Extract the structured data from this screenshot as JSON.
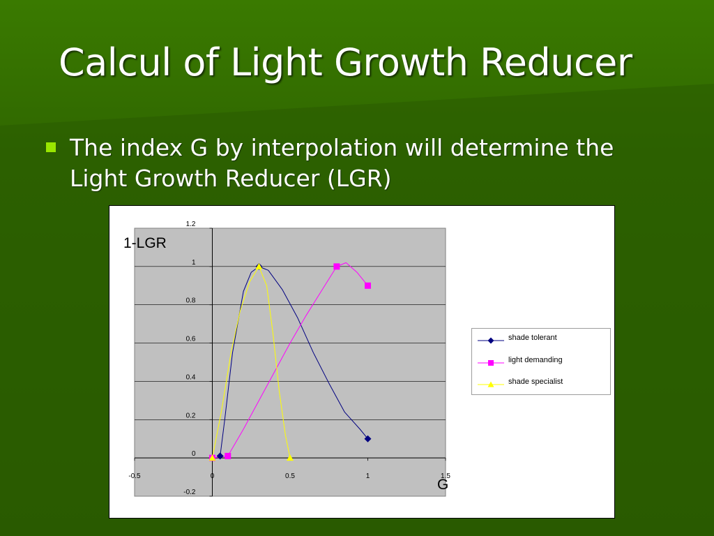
{
  "slide": {
    "title": "Calcul of Light Growth Reducer",
    "bullet": "The index G by interpolation will determine the Light Growth Reducer (LGR)"
  },
  "colors": {
    "background": "#2c5e00",
    "bullet": "#99e600",
    "plot_area": "#c0c0c0"
  },
  "chart_data": {
    "type": "scatter",
    "ylabel": "1-LGR",
    "xlabel": "G",
    "xlim": [
      -0.5,
      1.5
    ],
    "ylim": [
      -0.2,
      1.2
    ],
    "xticks": [
      "-0.5",
      "0",
      "0.5",
      "1",
      "1.5"
    ],
    "yticks": [
      "1.2",
      "1",
      "0.8",
      "0.6",
      "0.4",
      "0.2",
      "0",
      "-0.2"
    ],
    "grid": "horizontal",
    "legend_position": "right",
    "series": [
      {
        "name": "shade tolerant",
        "color": "#000080",
        "marker": "diamond",
        "markers": [
          [
            0.05,
            0.01
          ],
          [
            0.3,
            1.0
          ],
          [
            1.0,
            0.1
          ]
        ],
        "curve": [
          [
            0.05,
            0.01
          ],
          [
            0.08,
            0.2
          ],
          [
            0.13,
            0.55
          ],
          [
            0.2,
            0.87
          ],
          [
            0.25,
            0.97
          ],
          [
            0.3,
            1.0
          ],
          [
            0.36,
            0.98
          ],
          [
            0.45,
            0.88
          ],
          [
            0.55,
            0.73
          ],
          [
            0.65,
            0.55
          ],
          [
            0.75,
            0.39
          ],
          [
            0.85,
            0.24
          ],
          [
            0.95,
            0.15
          ],
          [
            1.0,
            0.1
          ]
        ]
      },
      {
        "name": "light demanding",
        "color": "#ff00ff",
        "marker": "square",
        "markers": [
          [
            0.0,
            0.0
          ],
          [
            0.1,
            0.01
          ],
          [
            0.8,
            1.0
          ],
          [
            1.0,
            0.9
          ]
        ],
        "curve": [
          [
            0.0,
            0.0
          ],
          [
            0.1,
            0.01
          ],
          [
            0.2,
            0.15
          ],
          [
            0.3,
            0.3
          ],
          [
            0.4,
            0.45
          ],
          [
            0.5,
            0.6
          ],
          [
            0.6,
            0.74
          ],
          [
            0.7,
            0.87
          ],
          [
            0.8,
            1.0
          ],
          [
            0.86,
            1.02
          ],
          [
            0.93,
            0.97
          ],
          [
            1.0,
            0.9
          ]
        ]
      },
      {
        "name": "shade specialist",
        "color": "#ffff00",
        "marker": "triangle",
        "markers": [
          [
            0.0,
            0.0
          ],
          [
            0.3,
            1.0
          ],
          [
            0.5,
            0.0
          ]
        ],
        "curve": [
          [
            0.0,
            0.0
          ],
          [
            0.06,
            0.25
          ],
          [
            0.12,
            0.55
          ],
          [
            0.18,
            0.77
          ],
          [
            0.24,
            0.92
          ],
          [
            0.3,
            1.0
          ],
          [
            0.35,
            0.9
          ],
          [
            0.39,
            0.65
          ],
          [
            0.43,
            0.35
          ],
          [
            0.47,
            0.12
          ],
          [
            0.5,
            0.0
          ]
        ]
      }
    ]
  }
}
